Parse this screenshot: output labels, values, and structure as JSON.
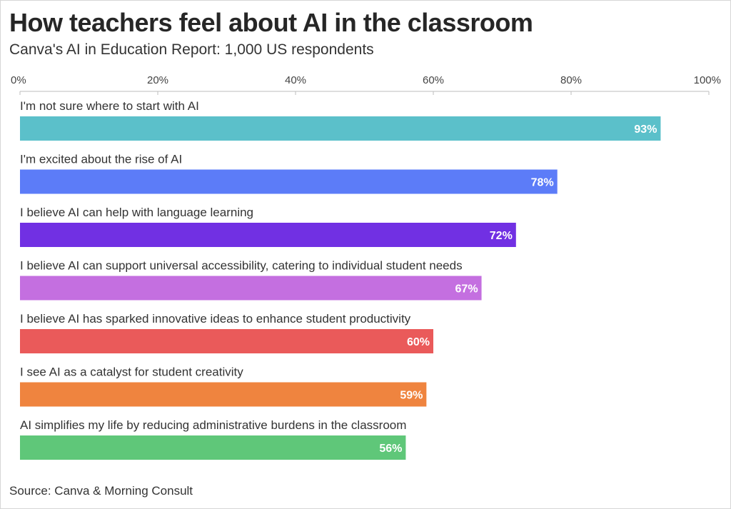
{
  "title": "How teachers feel about AI in the classroom",
  "subtitle": "Canva's AI in Education Report: 1,000 US respondents",
  "source": "Source: Canva & Morning Consult",
  "chart_data": {
    "type": "bar",
    "orientation": "horizontal",
    "title": "How teachers feel about AI in the classroom",
    "subtitle": "Canva's AI in Education Report: 1,000 US respondents",
    "xlabel": "",
    "ylabel": "",
    "xlim": [
      0,
      100
    ],
    "ticks": [
      0,
      20,
      40,
      60,
      80,
      100
    ],
    "tick_labels": [
      "0%",
      "20%",
      "40%",
      "60%",
      "80%",
      "100%"
    ],
    "axis_position": "top",
    "grid": false,
    "categories": [
      "I'm not sure where to start with AI",
      "I'm excited about the rise of AI",
      "I believe AI can help with language learning",
      "I believe AI can support universal accessibility, catering to individual student needs",
      "I believe AI has sparked innovative ideas to enhance student productivity",
      "I see AI as a catalyst for student creativity",
      "AI simplifies my life by reducing administrative burdens in the classroom"
    ],
    "values": [
      93,
      78,
      72,
      67,
      60,
      59,
      56
    ],
    "value_labels": [
      "93%",
      "78%",
      "72%",
      "67%",
      "60%",
      "59%",
      "56%"
    ],
    "colors": [
      "#5bc0ca",
      "#5c7cf8",
      "#7130e3",
      "#c46fe0",
      "#ea5a5a",
      "#ef843f",
      "#5fc779"
    ]
  }
}
